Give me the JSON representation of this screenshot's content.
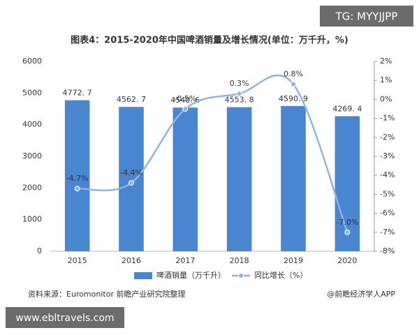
{
  "watermark_top": "TG: MYYJJPP",
  "watermark_bottom": "www.ebltravels.com",
  "source": "资料来源：Euromonitor 前瞻产业研究院整理",
  "credit": "@前瞻经济学人APP",
  "chart_data": {
    "type": "combo",
    "title": "图表4：2015-2020年中国啤酒销量及增长情况(单位：万千升，%)",
    "categories": [
      "2015",
      "2016",
      "2017",
      "2018",
      "2019",
      "2020"
    ],
    "series": [
      {
        "name": "啤酒销量（万千升）",
        "type": "bar",
        "color": "#4a86d0",
        "values": [
          4772.7,
          4562.7,
          4540.6,
          4553.8,
          4590.9,
          4269.4
        ],
        "value_labels": [
          "4772. 7",
          "4562. 7",
          "4540. 6",
          "4553. 8",
          "4590. 9",
          "4269. 4"
        ]
      },
      {
        "name": "同比增长（%）",
        "type": "line",
        "axis": "y2",
        "color": "#8fb4e2",
        "values": [
          -4.7,
          -4.4,
          -0.5,
          0.3,
          0.8,
          -7.0
        ],
        "value_labels": [
          "-4.7%",
          "-4.4%",
          "-0.5%",
          "0.3%",
          "0.8%",
          "-7.0%"
        ]
      }
    ],
    "ylim": [
      0,
      6000
    ],
    "yticks": [
      0,
      1000,
      2000,
      3000,
      4000,
      5000,
      6000
    ],
    "y2lim": [
      -8,
      2
    ],
    "y2ticks": [
      {
        "value": -8,
        "label": "-8%"
      },
      {
        "value": -7,
        "label": "-7%"
      },
      {
        "value": -6,
        "label": "-6%"
      },
      {
        "value": -5,
        "label": "-5%"
      },
      {
        "value": -4,
        "label": "-4%"
      },
      {
        "value": -3,
        "label": "-3%"
      },
      {
        "value": -2,
        "label": "-2%"
      },
      {
        "value": -1,
        "label": "-1%"
      },
      {
        "value": 0,
        "label": "0%"
      },
      {
        "value": 1,
        "label": "1%"
      },
      {
        "value": 2,
        "label": "2%"
      }
    ],
    "legend": "bottom"
  }
}
